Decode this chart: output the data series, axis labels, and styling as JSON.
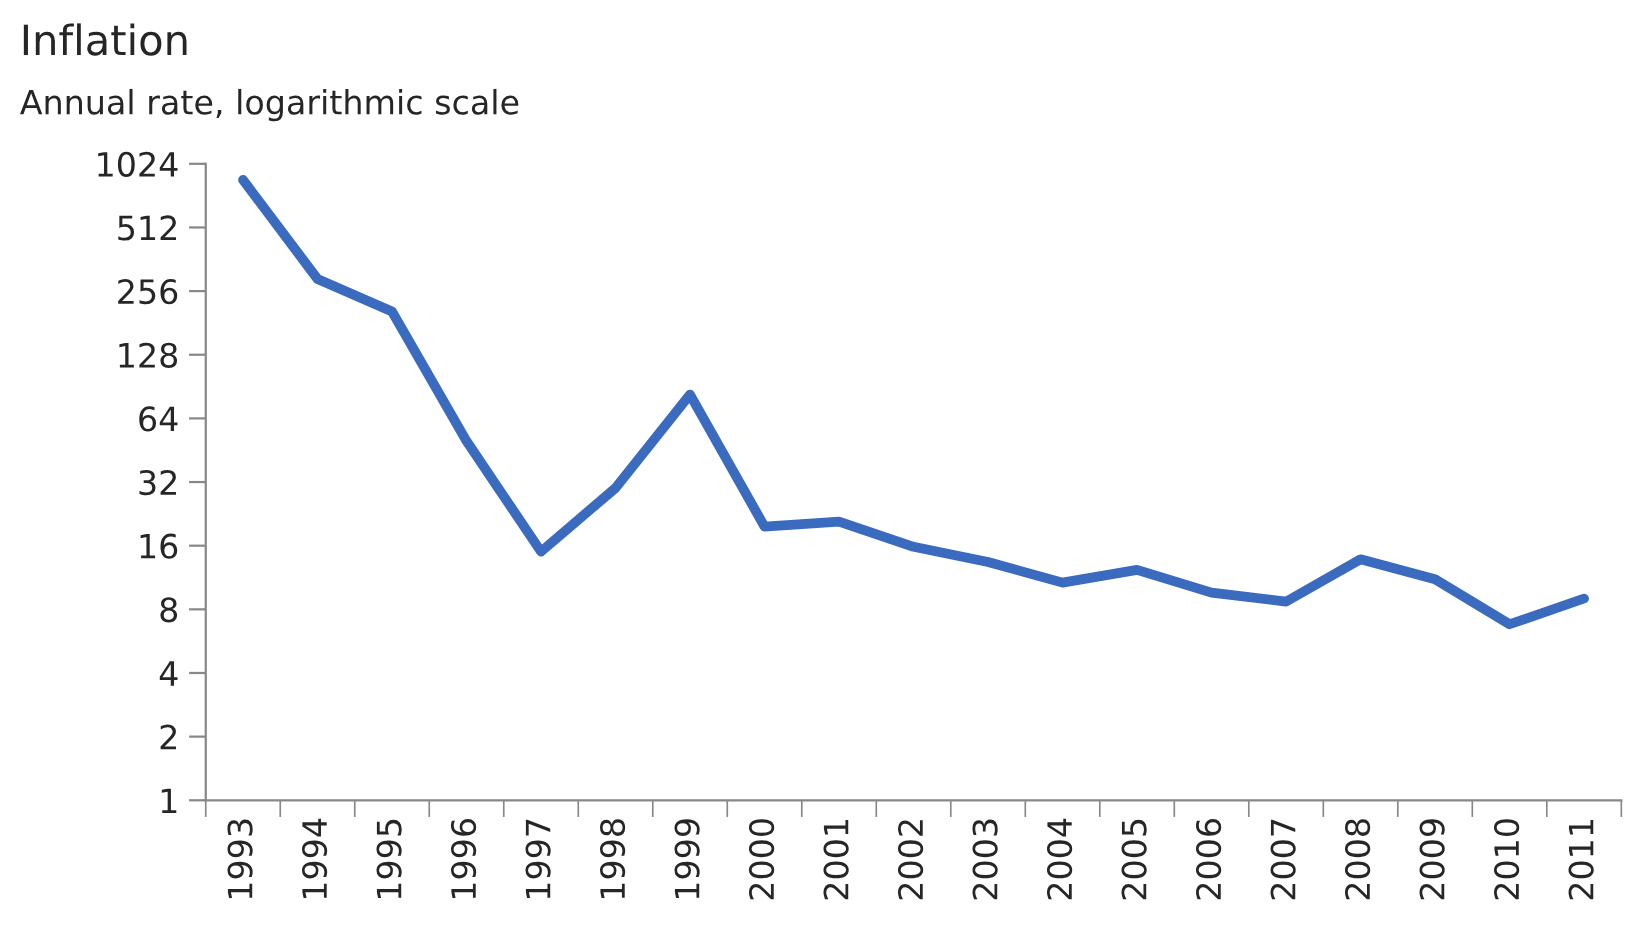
{
  "chart_data": {
    "type": "line",
    "title": "Inflation",
    "subtitle": "Annual rate, logarithmic scale",
    "categories": [
      "1993",
      "1994",
      "1995",
      "1996",
      "1997",
      "1998",
      "1999",
      "2000",
      "2001",
      "2002",
      "2003",
      "2004",
      "2005",
      "2006",
      "2007",
      "2008",
      "2009",
      "2010",
      "2011"
    ],
    "series": [
      {
        "color": "#3a6bbf",
        "values": [
          860,
          292,
          205,
          50,
          15,
          30,
          83,
          19.7,
          20.8,
          15.8,
          13.4,
          10.7,
          12.3,
          9.6,
          8.7,
          13.8,
          11.1,
          6.8,
          9.0
        ]
      }
    ],
    "log": "y",
    "ylim": [
      1,
      1024
    ],
    "yticks": [
      1,
      2,
      4,
      8,
      16,
      32,
      64,
      128,
      256,
      512,
      1024
    ],
    "grid": false,
    "legend": false
  }
}
